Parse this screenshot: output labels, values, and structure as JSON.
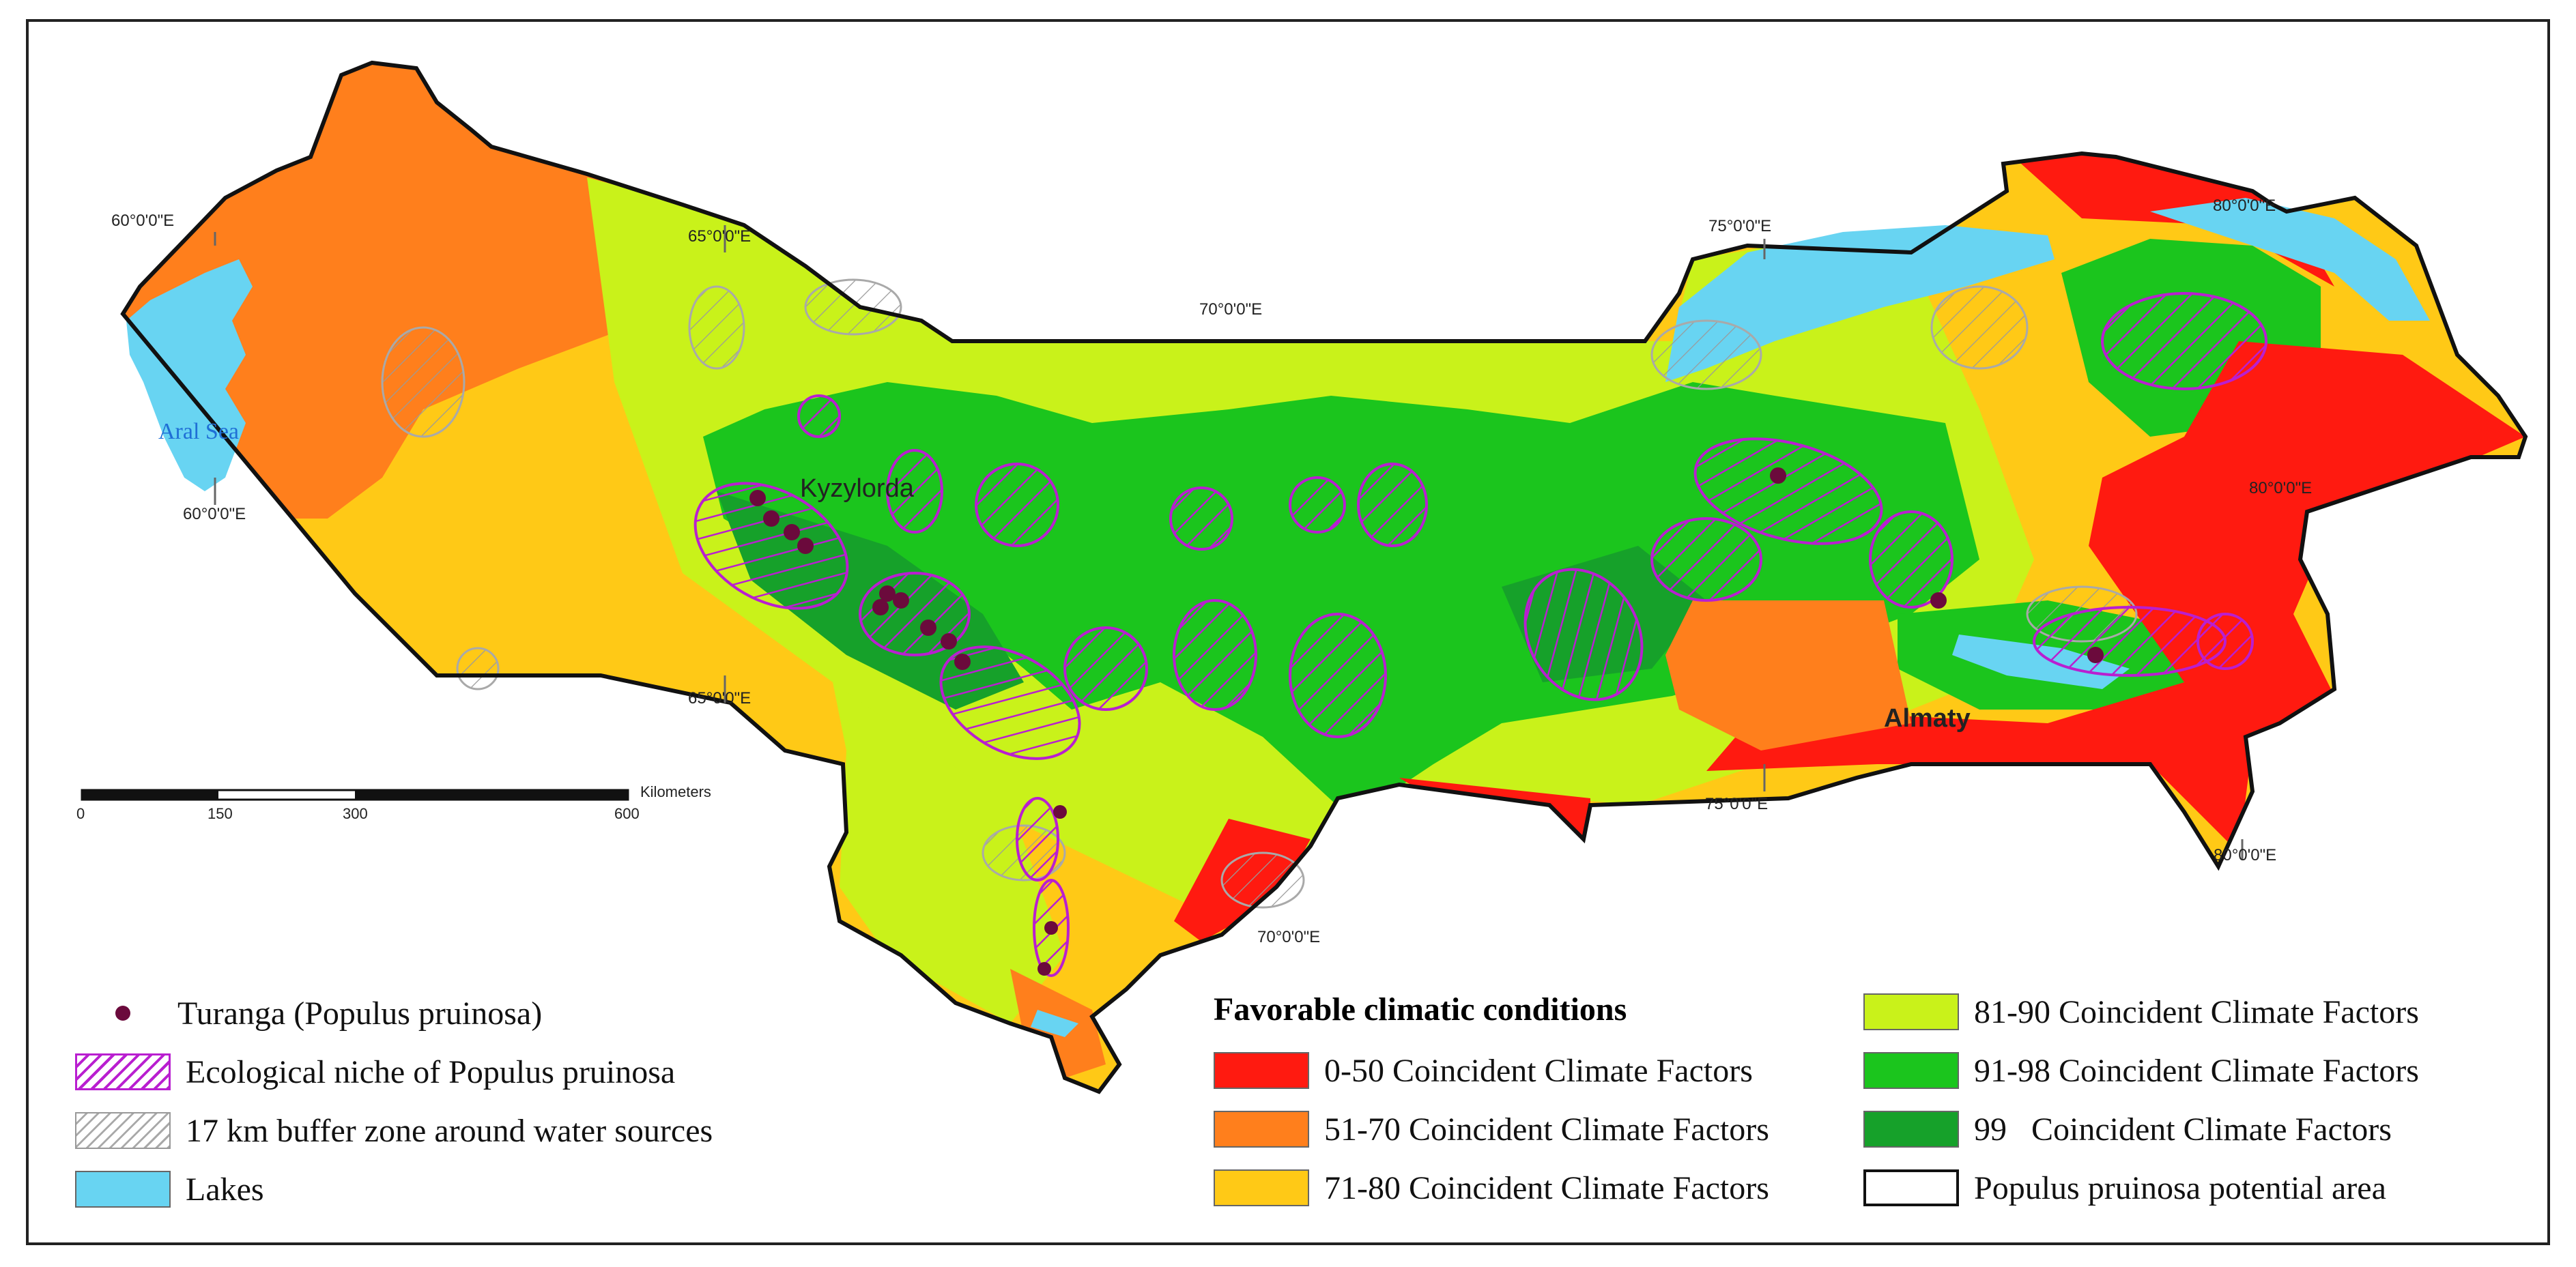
{
  "colors": {
    "c0_50": "#ff1a10",
    "c51_70": "#ff7f1c",
    "c71_80": "#ffc916",
    "c81_90": "#c9f21a",
    "c91_98": "#1bc51d",
    "c99": "#16a12a",
    "lakes": "#68d4f2",
    "niche": "#b91fd0",
    "buffer": "#a9a9a9",
    "turanga_point": "#6b0a3c",
    "border": "#111111"
  },
  "map": {
    "coord_labels": [
      "60°0'0\"E",
      "65°0'0\"E",
      "70°0'0\"E",
      "75°0'0\"E",
      "80°0'0\"E",
      "60°0'0\"E",
      "65°0'0\"E",
      "70°0'0\"E",
      "75°0'0\"E",
      "80°0'0\"E",
      "80°0'0\"E"
    ],
    "place_labels": {
      "aral_sea": "Aral Sea",
      "kyzylorda": "Kyzylorda",
      "almaty": "Almaty"
    }
  },
  "scale_bar": {
    "unit": "Kilometers",
    "ticks": [
      "0",
      "150",
      "300",
      "600"
    ]
  },
  "legend": {
    "symbols": [
      {
        "label": "Turanga (Populus pruinosa)",
        "icon": "point-icon"
      },
      {
        "label": "Ecological niche of Populus pruinosa",
        "icon": "purple-hatch-icon"
      },
      {
        "label": "17 km buffer zone around water sources",
        "icon": "gray-hatch-icon"
      },
      {
        "label": "Lakes",
        "icon": "lake-swatch-icon"
      }
    ],
    "classes_title": "Favorable climatic conditions",
    "classes": [
      {
        "label": "0-50 Coincident Climate Factors",
        "color": "#ff1a10"
      },
      {
        "label": "51-70 Coincident Climate Factors",
        "color": "#ff7f1c"
      },
      {
        "label": "71-80 Coincident Climate Factors",
        "color": "#ffc916"
      },
      {
        "label": "81-90 Coincident Climate Factors",
        "color": "#c9f21a"
      },
      {
        "label": "91-98 Coincident Climate Factors",
        "color": "#1bc51d"
      },
      {
        "label": "99   Coincident Climate Factors",
        "color": "#16a12a"
      },
      {
        "label": "Populus pruinosa potential area",
        "color": "#ffffff"
      }
    ]
  }
}
